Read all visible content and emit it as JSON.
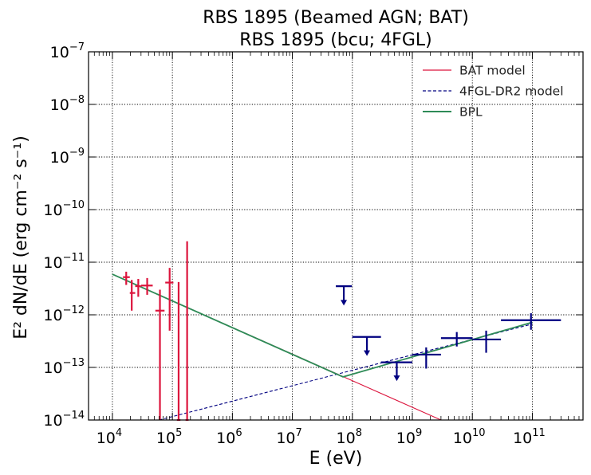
{
  "chart_data": {
    "type": "scatter",
    "title_line1": "RBS 1895 (Beamed AGN; BAT)",
    "title_line2": "RBS 1895 (bcu; 4FGL)",
    "xlabel": "E (eV)",
    "ylabel": "E² dN/dE (erg cm⁻² s⁻¹)",
    "xscale": "log",
    "yscale": "log",
    "xlim": [
      4000,
      700000000000
    ],
    "ylim": [
      1e-14,
      1e-07
    ],
    "grid": true,
    "legend_position": "top-right",
    "x_ticks": [
      {
        "value": 10000,
        "base": "10",
        "exp": "4"
      },
      {
        "value": 100000,
        "base": "10",
        "exp": "5"
      },
      {
        "value": 1000000,
        "base": "10",
        "exp": "6"
      },
      {
        "value": 10000000,
        "base": "10",
        "exp": "7"
      },
      {
        "value": 100000000,
        "base": "10",
        "exp": "8"
      },
      {
        "value": 1000000000,
        "base": "10",
        "exp": "9"
      },
      {
        "value": 10000000000,
        "base": "10",
        "exp": "10"
      },
      {
        "value": 100000000000,
        "base": "10",
        "exp": "11"
      }
    ],
    "y_ticks": [
      {
        "value": 1e-14,
        "base": "10",
        "exp": "−14"
      },
      {
        "value": 1e-13,
        "base": "10",
        "exp": "−13"
      },
      {
        "value": 1e-12,
        "base": "10",
        "exp": "−12"
      },
      {
        "value": 1e-11,
        "base": "10",
        "exp": "−11"
      },
      {
        "value": 1e-10,
        "base": "10",
        "exp": "−10"
      },
      {
        "value": 1e-09,
        "base": "10",
        "exp": "−9"
      },
      {
        "value": 1e-08,
        "base": "10",
        "exp": "−8"
      },
      {
        "value": 1e-07,
        "base": "10",
        "exp": "−7"
      }
    ],
    "legend": [
      {
        "label": "BAT model",
        "color": "#dc143c",
        "dash": "solid"
      },
      {
        "label": "4FGL-DR2 model",
        "color": "#000080",
        "dash": "dashed"
      },
      {
        "label": "BPL",
        "color": "#2e8b57",
        "dash": "solid"
      }
    ],
    "models": [
      {
        "name": "BAT model",
        "color": "#dc143c",
        "dash": "solid",
        "x": [
          10000,
          3000000000
        ],
        "y": [
          5.9e-12,
          1e-14
        ]
      },
      {
        "name": "4FGL-DR2 model",
        "color": "#000080",
        "dash": "dashed",
        "x": [
          60000,
          100000000000
        ],
        "y": [
          1e-14,
          6.7e-13
        ]
      },
      {
        "name": "BPL",
        "color": "#2e8b57",
        "dash": "solid",
        "x": [
          10000,
          70000000,
          100000000000
        ],
        "y": [
          5.9e-12,
          6.6e-14,
          7.2e-13
        ]
      }
    ],
    "bat_points": {
      "color": "#dc143c",
      "points": [
        {
          "x": 17000,
          "y": 5.2e-12,
          "xlo": 15000,
          "xhi": 19500,
          "ylo": 3.7e-12,
          "yhi": 6.6e-12
        },
        {
          "x": 21000,
          "y": 2.6e-12,
          "xlo": 19500,
          "xhi": 24000,
          "ylo": 1.2e-12,
          "yhi": 4.6e-12
        },
        {
          "x": 27000,
          "y": 3.5e-12,
          "xlo": 24000,
          "xhi": 30000,
          "ylo": 2.2e-12,
          "yhi": 4.8e-12
        },
        {
          "x": 38000,
          "y": 3.6e-12,
          "xlo": 30000,
          "xhi": 47000,
          "ylo": 2.4e-12,
          "yhi": 5e-12
        },
        {
          "x": 62000,
          "y": 1.2e-12,
          "xlo": 52000,
          "xhi": 74000,
          "ylo": 1e-14,
          "yhi": 3e-12
        },
        {
          "x": 90000,
          "y": 4.1e-12,
          "xlo": 76000,
          "xhi": 104000,
          "ylo": 5e-13,
          "yhi": 7.8e-12
        },
        {
          "x": 127000,
          "y": 1e-14,
          "xlo": 119000,
          "xhi": 136000,
          "ylo": 1e-14,
          "yhi": 4.2e-12
        },
        {
          "x": 176000,
          "y": 1e-14,
          "xlo": 166000,
          "xhi": 186000,
          "ylo": 1e-14,
          "yhi": 2.5e-11
        }
      ]
    },
    "fermi_points": {
      "color": "#000080",
      "points": [
        {
          "x": 1700000000,
          "y": 1.75e-13,
          "xlo": 1000000000,
          "xhi": 3000000000,
          "ylo": 9.5e-14,
          "yhi": 2.4e-13
        },
        {
          "x": 5500000000,
          "y": 3.6e-13,
          "xlo": 3000000000,
          "xhi": 10000000000,
          "ylo": 2.5e-13,
          "yhi": 4.7e-13
        },
        {
          "x": 17000000000,
          "y": 3.4e-13,
          "xlo": 10000000000,
          "xhi": 30000000000,
          "ylo": 1.9e-13,
          "yhi": 5e-13
        },
        {
          "x": 95000000000,
          "y": 7.9e-13,
          "xlo": 30000000000,
          "xhi": 300000000000,
          "ylo": 5.2e-13,
          "yhi": 1.07e-12
        }
      ]
    },
    "upper_limits": {
      "color": "#000080",
      "points": [
        {
          "x": 72000000,
          "y": 3.5e-12,
          "xlo": 53000000,
          "xhi": 98000000,
          "arrow_to": 1.5e-12
        },
        {
          "x": 175000000,
          "y": 3.8e-13,
          "xlo": 100000000,
          "xhi": 300000000,
          "arrow_to": 1.65e-13
        },
        {
          "x": 550000000,
          "y": 1.25e-13,
          "xlo": 300000000,
          "xhi": 1000000000,
          "arrow_to": 5.5e-14
        }
      ]
    }
  }
}
